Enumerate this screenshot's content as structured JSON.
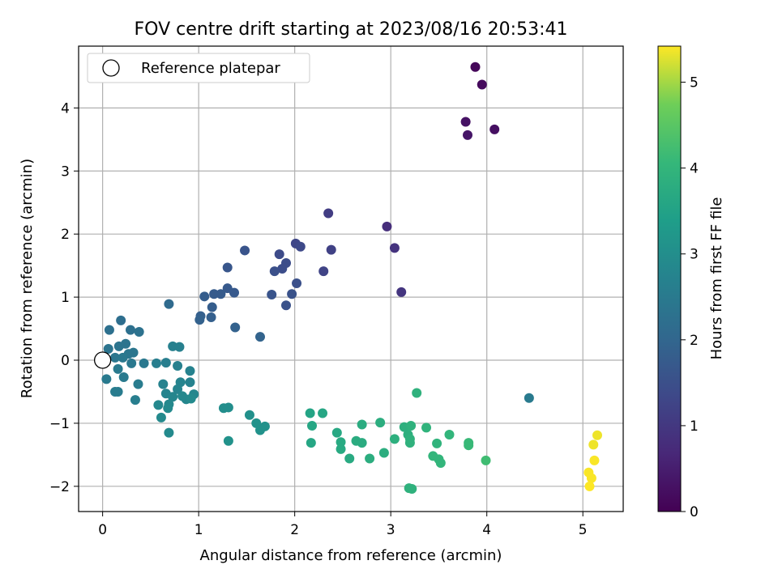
{
  "chart_data": {
    "type": "scatter",
    "title": "FOV centre drift starting at 2023/08/16 20:53:41",
    "xlabel": "Angular distance from reference (arcmin)",
    "ylabel": "Rotation from reference (arcmin)",
    "xlim": [
      -0.25,
      5.42
    ],
    "ylim": [
      -2.4,
      4.98
    ],
    "xticks": [
      0,
      1,
      2,
      3,
      4,
      5
    ],
    "yticks": [
      -2,
      -1,
      0,
      1,
      2,
      3,
      4
    ],
    "grid": true,
    "legend": {
      "position": "top-left",
      "entries": [
        {
          "label": "Reference platepar",
          "marker": "open-circle"
        }
      ]
    },
    "reference": {
      "x": 0,
      "y": 0
    },
    "colorbar": {
      "label": "Hours from first FF file",
      "colormap": "viridis",
      "range": [
        0,
        5.42
      ],
      "ticks": [
        0,
        1,
        2,
        3,
        4,
        5
      ]
    },
    "points": [
      [
        3.88,
        4.65,
        0.1
      ],
      [
        3.95,
        4.37,
        0.15
      ],
      [
        3.78,
        3.78,
        0.3
      ],
      [
        3.8,
        3.57,
        0.35
      ],
      [
        4.08,
        3.66,
        0.25
      ],
      [
        2.96,
        2.12,
        0.8
      ],
      [
        3.04,
        1.78,
        0.9
      ],
      [
        3.11,
        1.08,
        0.95
      ],
      [
        2.35,
        2.33,
        1.1
      ],
      [
        2.38,
        1.75,
        1.2
      ],
      [
        2.3,
        1.41,
        1.25
      ],
      [
        2.01,
        1.85,
        1.3
      ],
      [
        2.06,
        1.8,
        1.35
      ],
      [
        1.84,
        1.68,
        1.4
      ],
      [
        1.87,
        1.45,
        1.45
      ],
      [
        1.91,
        1.54,
        1.45
      ],
      [
        1.79,
        1.41,
        1.5
      ],
      [
        2.02,
        1.22,
        1.5
      ],
      [
        1.97,
        1.05,
        1.55
      ],
      [
        1.91,
        0.87,
        1.55
      ],
      [
        1.76,
        1.04,
        1.6
      ],
      [
        1.48,
        1.74,
        1.6
      ],
      [
        1.3,
        1.47,
        1.65
      ],
      [
        1.37,
        1.07,
        1.7
      ],
      [
        1.3,
        1.14,
        1.7
      ],
      [
        1.23,
        1.05,
        1.75
      ],
      [
        1.16,
        1.05,
        1.75
      ],
      [
        1.06,
        1.01,
        1.8
      ],
      [
        1.14,
        0.84,
        1.8
      ],
      [
        1.13,
        0.68,
        1.85
      ],
      [
        1.02,
        0.7,
        1.85
      ],
      [
        1.01,
        0.64,
        1.9
      ],
      [
        1.38,
        0.52,
        1.9
      ],
      [
        1.64,
        0.37,
        1.95
      ],
      [
        0.69,
        0.89,
        2.1
      ],
      [
        0.19,
        0.63,
        2.2
      ],
      [
        0.07,
        0.48,
        2.25
      ],
      [
        0.29,
        0.48,
        2.25
      ],
      [
        0.38,
        0.45,
        2.3
      ],
      [
        0.06,
        0.18,
        2.35
      ],
      [
        0.17,
        0.22,
        2.35
      ],
      [
        0.24,
        0.26,
        2.35
      ],
      [
        0.27,
        0.1,
        2.4
      ],
      [
        0.32,
        0.12,
        2.4
      ],
      [
        0.13,
        0.04,
        2.4
      ],
      [
        0.21,
        0.04,
        2.45
      ],
      [
        0.43,
        -0.05,
        2.45
      ],
      [
        0.3,
        -0.05,
        2.45
      ],
      [
        0.16,
        -0.14,
        2.5
      ],
      [
        0.22,
        -0.27,
        2.5
      ],
      [
        0.04,
        -0.3,
        2.5
      ],
      [
        0.37,
        -0.38,
        2.55
      ],
      [
        0.13,
        -0.5,
        2.55
      ],
      [
        0.16,
        -0.5,
        2.55
      ],
      [
        0.34,
        -0.63,
        2.6
      ],
      [
        0.56,
        -0.05,
        2.6
      ],
      [
        0.66,
        -0.04,
        2.6
      ],
      [
        0.73,
        0.22,
        2.65
      ],
      [
        0.8,
        0.21,
        2.65
      ],
      [
        0.78,
        -0.09,
        2.65
      ],
      [
        0.91,
        -0.17,
        2.7
      ],
      [
        0.63,
        -0.38,
        2.7
      ],
      [
        0.91,
        -0.35,
        2.7
      ],
      [
        0.81,
        -0.35,
        2.75
      ],
      [
        0.78,
        -0.46,
        2.75
      ],
      [
        0.66,
        -0.53,
        2.75
      ],
      [
        0.73,
        -0.58,
        2.8
      ],
      [
        0.95,
        -0.54,
        2.8
      ],
      [
        0.87,
        -0.62,
        2.8
      ],
      [
        0.83,
        -0.57,
        2.85
      ],
      [
        0.69,
        -0.7,
        2.85
      ],
      [
        0.58,
        -0.71,
        2.85
      ],
      [
        0.68,
        -0.76,
        2.9
      ],
      [
        0.61,
        -0.91,
        2.9
      ],
      [
        0.69,
        -1.15,
        2.9
      ],
      [
        0.92,
        -0.61,
        2.9
      ],
      [
        4.44,
        -0.6,
        2.5
      ],
      [
        1.26,
        -0.76,
        3.0
      ],
      [
        1.31,
        -0.75,
        3.0
      ],
      [
        1.53,
        -0.87,
        3.05
      ],
      [
        1.6,
        -1.0,
        3.1
      ],
      [
        1.69,
        -1.05,
        3.1
      ],
      [
        1.64,
        -1.11,
        3.1
      ],
      [
        1.31,
        -1.28,
        3.1
      ],
      [
        2.16,
        -0.84,
        3.55
      ],
      [
        2.29,
        -0.84,
        3.6
      ],
      [
        2.18,
        -1.04,
        3.6
      ],
      [
        2.17,
        -1.31,
        3.6
      ],
      [
        2.44,
        -1.15,
        3.65
      ],
      [
        2.48,
        -1.3,
        3.7
      ],
      [
        2.48,
        -1.41,
        3.7
      ],
      [
        2.57,
        -1.56,
        3.7
      ],
      [
        2.64,
        -1.28,
        3.75
      ],
      [
        2.7,
        -1.31,
        3.75
      ],
      [
        2.7,
        -1.02,
        3.75
      ],
      [
        2.78,
        -1.56,
        3.8
      ],
      [
        2.89,
        -0.99,
        3.8
      ],
      [
        2.93,
        -1.47,
        3.8
      ],
      [
        3.04,
        -1.25,
        3.85
      ],
      [
        3.14,
        -1.06,
        3.85
      ],
      [
        3.18,
        -1.18,
        3.85
      ],
      [
        3.2,
        -1.25,
        3.9
      ],
      [
        3.21,
        -1.04,
        3.9
      ],
      [
        3.2,
        -1.31,
        3.9
      ],
      [
        3.27,
        -0.52,
        3.9
      ],
      [
        3.19,
        -2.03,
        3.9
      ],
      [
        3.22,
        -2.04,
        3.9
      ],
      [
        3.37,
        -1.07,
        3.95
      ],
      [
        3.48,
        -1.32,
        3.95
      ],
      [
        3.44,
        -1.52,
        4.0
      ],
      [
        3.5,
        -1.57,
        4.0
      ],
      [
        3.52,
        -1.63,
        4.0
      ],
      [
        3.61,
        -1.18,
        4.0
      ],
      [
        3.81,
        -1.31,
        4.1
      ],
      [
        3.81,
        -1.35,
        4.1
      ],
      [
        3.99,
        -1.59,
        4.2
      ],
      [
        5.15,
        -1.19,
        5.35
      ],
      [
        5.11,
        -1.34,
        5.35
      ],
      [
        5.12,
        -1.59,
        5.4
      ],
      [
        5.06,
        -1.78,
        5.4
      ],
      [
        5.09,
        -1.87,
        5.4
      ],
      [
        5.07,
        -2.0,
        5.42
      ]
    ]
  }
}
